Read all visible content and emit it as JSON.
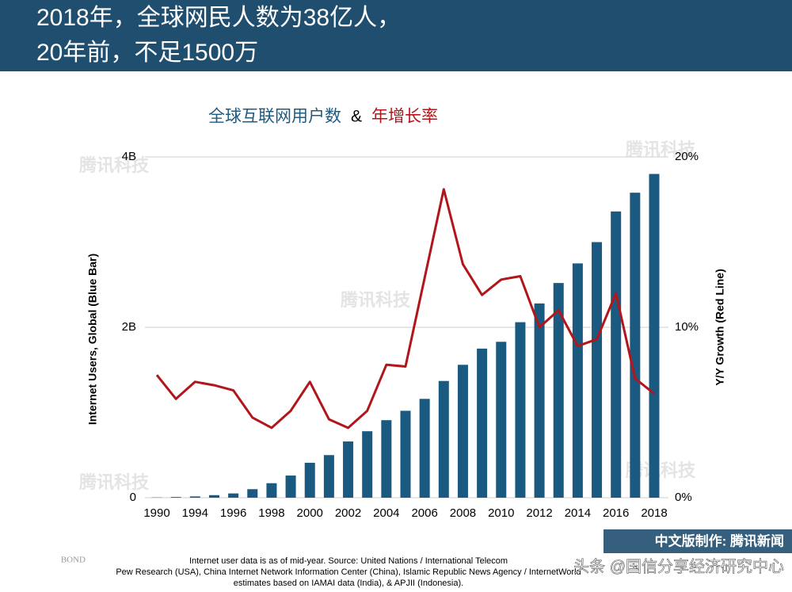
{
  "header": {
    "lines": [
      "2018年，全球网民人数为38亿人，",
      "20年前，不足1500万"
    ]
  },
  "chart_data": {
    "type": "bar",
    "title_parts": [
      {
        "text": "全球互联网用户数",
        "color": "#1f5a80"
      },
      {
        "text": "&",
        "color": "#000000"
      },
      {
        "text": "年增长率",
        "color": "#b0161b"
      }
    ],
    "categories": [
      "1990",
      null,
      "1994",
      null,
      "1996",
      null,
      "1998",
      null,
      "2000",
      null,
      "2002",
      null,
      "2004",
      null,
      "2006",
      null,
      "2008",
      null,
      "2010",
      null,
      "2012",
      null,
      "2014",
      null,
      "2016",
      null,
      "2018"
    ],
    "series": [
      {
        "type": "bar",
        "color": "#1b5a80",
        "values": [
          0.003,
          0.008,
          0.015,
          0.03,
          0.05,
          0.1,
          0.17,
          0.26,
          0.41,
          0.5,
          0.66,
          0.78,
          0.91,
          1.02,
          1.16,
          1.37,
          1.56,
          1.75,
          1.83,
          2.06,
          2.28,
          2.52,
          2.75,
          3.0,
          3.36,
          3.58,
          3.8
        ]
      },
      {
        "type": "line",
        "axis": "y2",
        "color": "#b0161b",
        "values": [
          7.2,
          5.8,
          6.8,
          6.6,
          6.3,
          4.7,
          4.1,
          5.1,
          6.8,
          4.6,
          4.1,
          5.1,
          7.8,
          7.7,
          12.9,
          18.1,
          13.7,
          11.9,
          12.8,
          13.0,
          10.0,
          11.0,
          8.9,
          9.3,
          12.0,
          7.0,
          6.1
        ]
      }
    ],
    "ylim": [
      0,
      4
    ],
    "yticks": [
      0,
      {
        "value": 2,
        "label": "2B"
      },
      {
        "value": 4,
        "label": "4B"
      }
    ],
    "y2lim": [
      0,
      20
    ],
    "y2ticks": [
      {
        "value": 0,
        "label": "0%"
      },
      {
        "value": 10,
        "label": "10%"
      },
      {
        "value": 20,
        "label": "20%"
      }
    ],
    "ylabel": "Internet Users, Global (Blue Bar)",
    "y2label": "Y/Y Growth (Red Line)",
    "grid": true
  },
  "footer": {
    "brand": "BOND",
    "source": [
      "Internet user data is as of mid-year.  Source: United Nations / International Telecom",
      "Pew Research (USA), China Internet Network Information Center (China), Islamic Republic News Agency / InternetWorld",
      "estimates based on IAMAI data (India), & APJII (Indonesia)."
    ],
    "badge": "中文版制作: 腾讯新闻",
    "credit": "头条 @国信分享经济研究中心"
  },
  "watermark": "腾讯科技"
}
